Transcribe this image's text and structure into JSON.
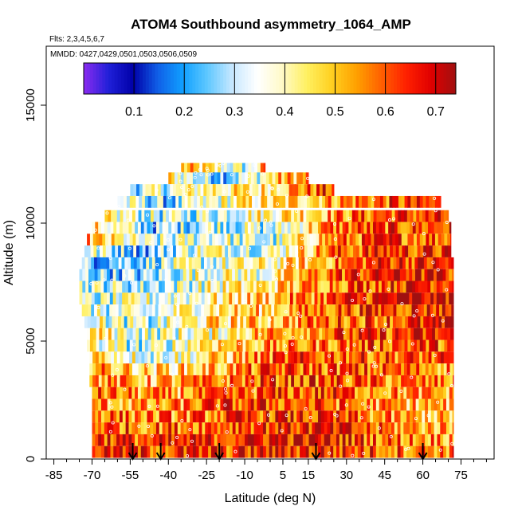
{
  "chart_data": {
    "type": "heatmap",
    "title": "ATOM4 Southbound asymmetry_1064_AMP",
    "flights_note": "Flts: 2,3,4,5,6,7",
    "mmdd_note": "MMDD: 0427,0429,0501,0503,0506,0509",
    "xlabel": "Latitude (deg N)",
    "ylabel": "Altitude (m)",
    "xlim": [
      -88,
      88
    ],
    "ylim": [
      0,
      17500
    ],
    "x_ticks": [
      -85,
      -70,
      -55,
      -40,
      -25,
      -10,
      5,
      15,
      30,
      45,
      60,
      75
    ],
    "y_ticks": [
      0,
      5000,
      10000,
      15000
    ],
    "colorbar": {
      "min": 0.0,
      "max": 0.74,
      "ticks": [
        0.1,
        0.2,
        0.3,
        0.4,
        0.5,
        0.6,
        0.7
      ],
      "colors": [
        "#8b2cf0",
        "#2020d8",
        "#0000a8",
        "#1060e8",
        "#10a0ff",
        "#60c8ff",
        "#c8e8ff",
        "#ffffff",
        "#fffac8",
        "#fff060",
        "#ffd020",
        "#ffa000",
        "#ff6000",
        "#ff2000",
        "#e00000",
        "#a01010"
      ]
    },
    "arrow_latitudes": [
      -54,
      -43,
      -20,
      18,
      60
    ],
    "profiles": [
      {
        "alt": 12300,
        "lat_min": -35,
        "lat_max": -2,
        "trend": [
          0.5,
          0.45,
          0.4,
          0.35,
          0.32,
          0.55
        ]
      },
      {
        "alt": 11900,
        "lat_min": -40,
        "lat_max": 15,
        "trend": [
          0.45,
          0.3,
          0.28,
          0.35,
          0.5,
          0.55
        ]
      },
      {
        "alt": 11400,
        "lat_min": -55,
        "lat_max": 25,
        "trend": [
          0.3,
          0.35,
          0.45,
          0.42,
          0.55,
          0.62
        ]
      },
      {
        "alt": 10900,
        "lat_min": -60,
        "lat_max": 67,
        "trend": [
          0.35,
          0.25,
          0.4,
          0.45,
          0.55,
          0.6,
          0.58
        ]
      },
      {
        "alt": 10300,
        "lat_min": -65,
        "lat_max": 70,
        "trend": [
          0.4,
          0.3,
          0.35,
          0.45,
          0.55,
          0.62,
          0.6
        ]
      },
      {
        "alt": 9800,
        "lat_min": -70,
        "lat_max": 71,
        "trend": [
          0.45,
          0.25,
          0.35,
          0.3,
          0.58,
          0.6,
          0.62
        ]
      },
      {
        "alt": 9300,
        "lat_min": -72,
        "lat_max": 71,
        "trend": [
          0.5,
          0.3,
          0.38,
          0.3,
          0.55,
          0.62,
          0.6
        ]
      },
      {
        "alt": 8800,
        "lat_min": -73,
        "lat_max": 71,
        "trend": [
          0.35,
          0.25,
          0.4,
          0.35,
          0.58,
          0.64,
          0.62
        ]
      },
      {
        "alt": 8300,
        "lat_min": -74,
        "lat_max": 72,
        "trend": [
          0.25,
          0.3,
          0.35,
          0.4,
          0.55,
          0.66,
          0.62
        ]
      },
      {
        "alt": 7800,
        "lat_min": -75,
        "lat_max": 72,
        "trend": [
          0.3,
          0.25,
          0.4,
          0.38,
          0.6,
          0.68,
          0.64
        ]
      },
      {
        "alt": 7300,
        "lat_min": -75,
        "lat_max": 72,
        "trend": [
          0.35,
          0.3,
          0.38,
          0.45,
          0.58,
          0.66,
          0.68
        ]
      },
      {
        "alt": 6800,
        "lat_min": -75,
        "lat_max": 72,
        "trend": [
          0.3,
          0.35,
          0.4,
          0.5,
          0.6,
          0.68,
          0.7
        ]
      },
      {
        "alt": 6300,
        "lat_min": -74,
        "lat_max": 72,
        "trend": [
          0.35,
          0.3,
          0.45,
          0.48,
          0.6,
          0.64,
          0.66
        ]
      },
      {
        "alt": 5800,
        "lat_min": -73,
        "lat_max": 72,
        "trend": [
          0.4,
          0.3,
          0.45,
          0.5,
          0.6,
          0.62,
          0.64
        ]
      },
      {
        "alt": 5300,
        "lat_min": -72,
        "lat_max": 72,
        "trend": [
          0.45,
          0.35,
          0.4,
          0.55,
          0.6,
          0.62,
          0.64
        ]
      },
      {
        "alt": 4800,
        "lat_min": -72,
        "lat_max": 72,
        "trend": [
          0.4,
          0.3,
          0.5,
          0.52,
          0.58,
          0.62,
          0.6
        ]
      },
      {
        "alt": 4300,
        "lat_min": -71,
        "lat_max": 72,
        "trend": [
          0.5,
          0.35,
          0.45,
          0.58,
          0.62,
          0.6,
          0.58
        ]
      },
      {
        "alt": 3800,
        "lat_min": -71,
        "lat_max": 72,
        "trend": [
          0.55,
          0.45,
          0.5,
          0.6,
          0.6,
          0.58,
          0.55
        ]
      },
      {
        "alt": 3300,
        "lat_min": -71,
        "lat_max": 72,
        "trend": [
          0.55,
          0.5,
          0.55,
          0.62,
          0.6,
          0.56,
          0.55
        ]
      },
      {
        "alt": 2800,
        "lat_min": -70,
        "lat_max": 72,
        "trend": [
          0.58,
          0.52,
          0.55,
          0.6,
          0.62,
          0.55,
          0.5
        ]
      },
      {
        "alt": 2300,
        "lat_min": -70,
        "lat_max": 72,
        "trend": [
          0.55,
          0.5,
          0.6,
          0.62,
          0.58,
          0.52,
          0.5
        ]
      },
      {
        "alt": 1800,
        "lat_min": -70,
        "lat_max": 72,
        "trend": [
          0.6,
          0.55,
          0.58,
          0.64,
          0.6,
          0.52,
          0.48
        ]
      },
      {
        "alt": 1300,
        "lat_min": -70,
        "lat_max": 72,
        "trend": [
          0.62,
          0.58,
          0.62,
          0.66,
          0.64,
          0.55,
          0.52
        ]
      },
      {
        "alt": 800,
        "lat_min": -70,
        "lat_max": 72,
        "trend": [
          0.66,
          0.6,
          0.64,
          0.68,
          0.66,
          0.58,
          0.55
        ]
      },
      {
        "alt": 300,
        "lat_min": -70,
        "lat_max": 72,
        "trend": [
          0.68,
          0.62,
          0.62,
          0.66,
          0.64,
          0.6,
          0.58
        ]
      }
    ]
  }
}
